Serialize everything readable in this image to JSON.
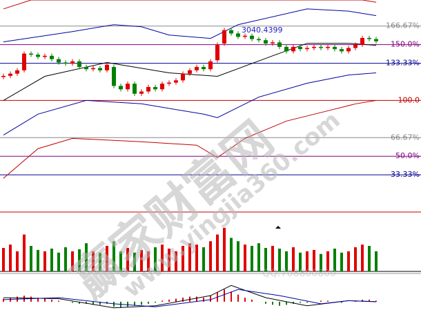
{
  "chart_data": {
    "type": "candlestick",
    "open": [
      121,
      122,
      124,
      127,
      142,
      141,
      139,
      140,
      137,
      134,
      133,
      135,
      130,
      128,
      129,
      127,
      130,
      113,
      110,
      115,
      106,
      108,
      112,
      110,
      115,
      116,
      118,
      124,
      127,
      130,
      128,
      136,
      151,
      163,
      160,
      157,
      158,
      155,
      154,
      151,
      152,
      148,
      144,
      148,
      146,
      147,
      148,
      147,
      148,
      146,
      144,
      147,
      150,
      156,
      155
    ],
    "high": [
      124,
      126,
      129,
      144,
      144,
      143,
      142,
      142,
      139,
      136,
      137,
      137,
      132,
      131,
      131,
      134,
      132,
      115,
      117,
      117,
      110,
      114,
      114,
      117,
      118,
      120,
      126,
      129,
      132,
      132,
      137,
      152,
      165,
      165,
      162,
      160,
      160,
      157,
      156,
      154,
      154,
      150,
      150,
      150,
      149,
      150,
      150,
      150,
      150,
      148,
      149,
      152,
      158,
      158,
      157
    ],
    "low": [
      119,
      120,
      122,
      125,
      139,
      137,
      137,
      135,
      132,
      131,
      131,
      128,
      126,
      126,
      125,
      125,
      111,
      108,
      108,
      104,
      104,
      106,
      108,
      108,
      113,
      114,
      116,
      122,
      125,
      126,
      126,
      134,
      149,
      158,
      155,
      155,
      153,
      152,
      149,
      149,
      146,
      142,
      142,
      144,
      144,
      145,
      145,
      145,
      144,
      142,
      142,
      145,
      148,
      153,
      151
    ],
    "close": [
      122,
      124,
      127,
      142,
      141,
      139,
      140,
      137,
      134,
      133,
      135,
      130,
      128,
      129,
      127,
      132,
      113,
      110,
      115,
      106,
      108,
      112,
      110,
      115,
      116,
      118,
      124,
      127,
      130,
      128,
      135,
      150,
      163,
      160,
      157,
      158,
      155,
      154,
      151,
      152,
      148,
      144,
      148,
      146,
      147,
      148,
      147,
      148,
      146,
      144,
      147,
      150,
      156,
      155,
      153
    ],
    "up_color": "#e00000",
    "down_color": "#008000",
    "ylim": [
      0,
      190
    ],
    "yticks": [
      {
        "value": 166.67,
        "label": "166.67%"
      },
      {
        "value": 150,
        "label": "150.0%"
      },
      {
        "value": 133.33,
        "label": "133.33%"
      },
      {
        "value": 100,
        "label": "100.0"
      },
      {
        "value": 66.67,
        "label": "66.67%"
      },
      {
        "value": 50,
        "label": "50.0%"
      },
      {
        "value": 33.33,
        "label": "33.33%"
      }
    ],
    "ytick_colors": [
      "#888888",
      "#800080",
      "#000090",
      "#c00000",
      "#888888",
      "#800080",
      "#000090"
    ],
    "bands": [
      {
        "color": "#c00000",
        "x": [
          0,
          4,
          52,
          54
        ],
        "values": [
          182,
          190,
          190,
          188
        ]
      },
      {
        "color": "#0000a0",
        "x": [
          0,
          10,
          16,
          20,
          24,
          30,
          34,
          44,
          50,
          54
        ],
        "values": [
          152.5,
          161.7,
          167.9,
          166,
          158.6,
          155.6,
          167.9,
          182,
          180,
          176
        ]
      },
      {
        "color": "#000000",
        "x": [
          0,
          6,
          15,
          24,
          31,
          39,
          44,
          50,
          54
        ],
        "values": [
          100,
          121.6,
          134,
          124.7,
          121.6,
          140,
          151.2,
          151.2,
          149.4
        ]
      },
      {
        "color": "#0000a0",
        "x": [
          0,
          5,
          12,
          20,
          29,
          31,
          37,
          44,
          50,
          54
        ],
        "values": [
          69,
          87.7,
          100,
          97,
          87.7,
          84.6,
          103,
          115.4,
          122.8,
          124.7
        ]
      },
      {
        "color": "#c00000",
        "x": [
          0,
          5,
          10,
          20,
          28,
          31,
          35,
          41,
          47,
          51,
          54
        ],
        "values": [
          30.2,
          56.8,
          66,
          63,
          59.9,
          48.8,
          66,
          81.5,
          90.7,
          96.9,
          100
        ]
      }
    ],
    "annotations": [
      "3040.4399"
    ],
    "volume": [
      35,
      40,
      30,
      55,
      38,
      32,
      30,
      34,
      28,
      36,
      30,
      33,
      42,
      30,
      28,
      38,
      45,
      30,
      35,
      28,
      32,
      30,
      36,
      40,
      34,
      30,
      38,
      42,
      40,
      36,
      45,
      55,
      65,
      50,
      45,
      40,
      38,
      42,
      35,
      38,
      34,
      30,
      36,
      28,
      30,
      32,
      26,
      30,
      34,
      28,
      30,
      36,
      40,
      38,
      30
    ],
    "vlim": [
      0,
      70
    ],
    "macd": [
      3,
      4,
      5,
      6,
      5,
      4,
      3,
      2,
      1,
      0,
      -1,
      -2,
      -2,
      -3,
      -3,
      -2,
      -5,
      -6,
      -5,
      -4,
      -3,
      -2,
      -1,
      1,
      2,
      3,
      4,
      5,
      5,
      4,
      6,
      9,
      12,
      10,
      7,
      4,
      2,
      0,
      -2,
      -3,
      -4,
      -3,
      -2,
      -1,
      -1,
      0,
      1,
      1,
      0,
      -1,
      0,
      1,
      2,
      2,
      1
    ],
    "macd_lines": [
      {
        "color": "#000000",
        "x": [
          0,
          8,
          16,
          22,
          30,
          33,
          38,
          44,
          50,
          54
        ],
        "values": [
          4,
          3,
          -6,
          -4,
          6,
          16,
          4,
          -4,
          1,
          0
        ]
      },
      {
        "color": "#0000a0",
        "x": [
          0,
          8,
          16,
          22,
          30,
          34,
          40,
          46,
          50,
          54
        ],
        "values": [
          2,
          4,
          -2,
          -5,
          2,
          12,
          6,
          -2,
          1,
          0
        ]
      }
    ],
    "mlim": [
      -15,
      25
    ],
    "watermark": [
      "赢家财富网",
      "www.yingjia360.com",
      "QQ:708800800"
    ]
  }
}
